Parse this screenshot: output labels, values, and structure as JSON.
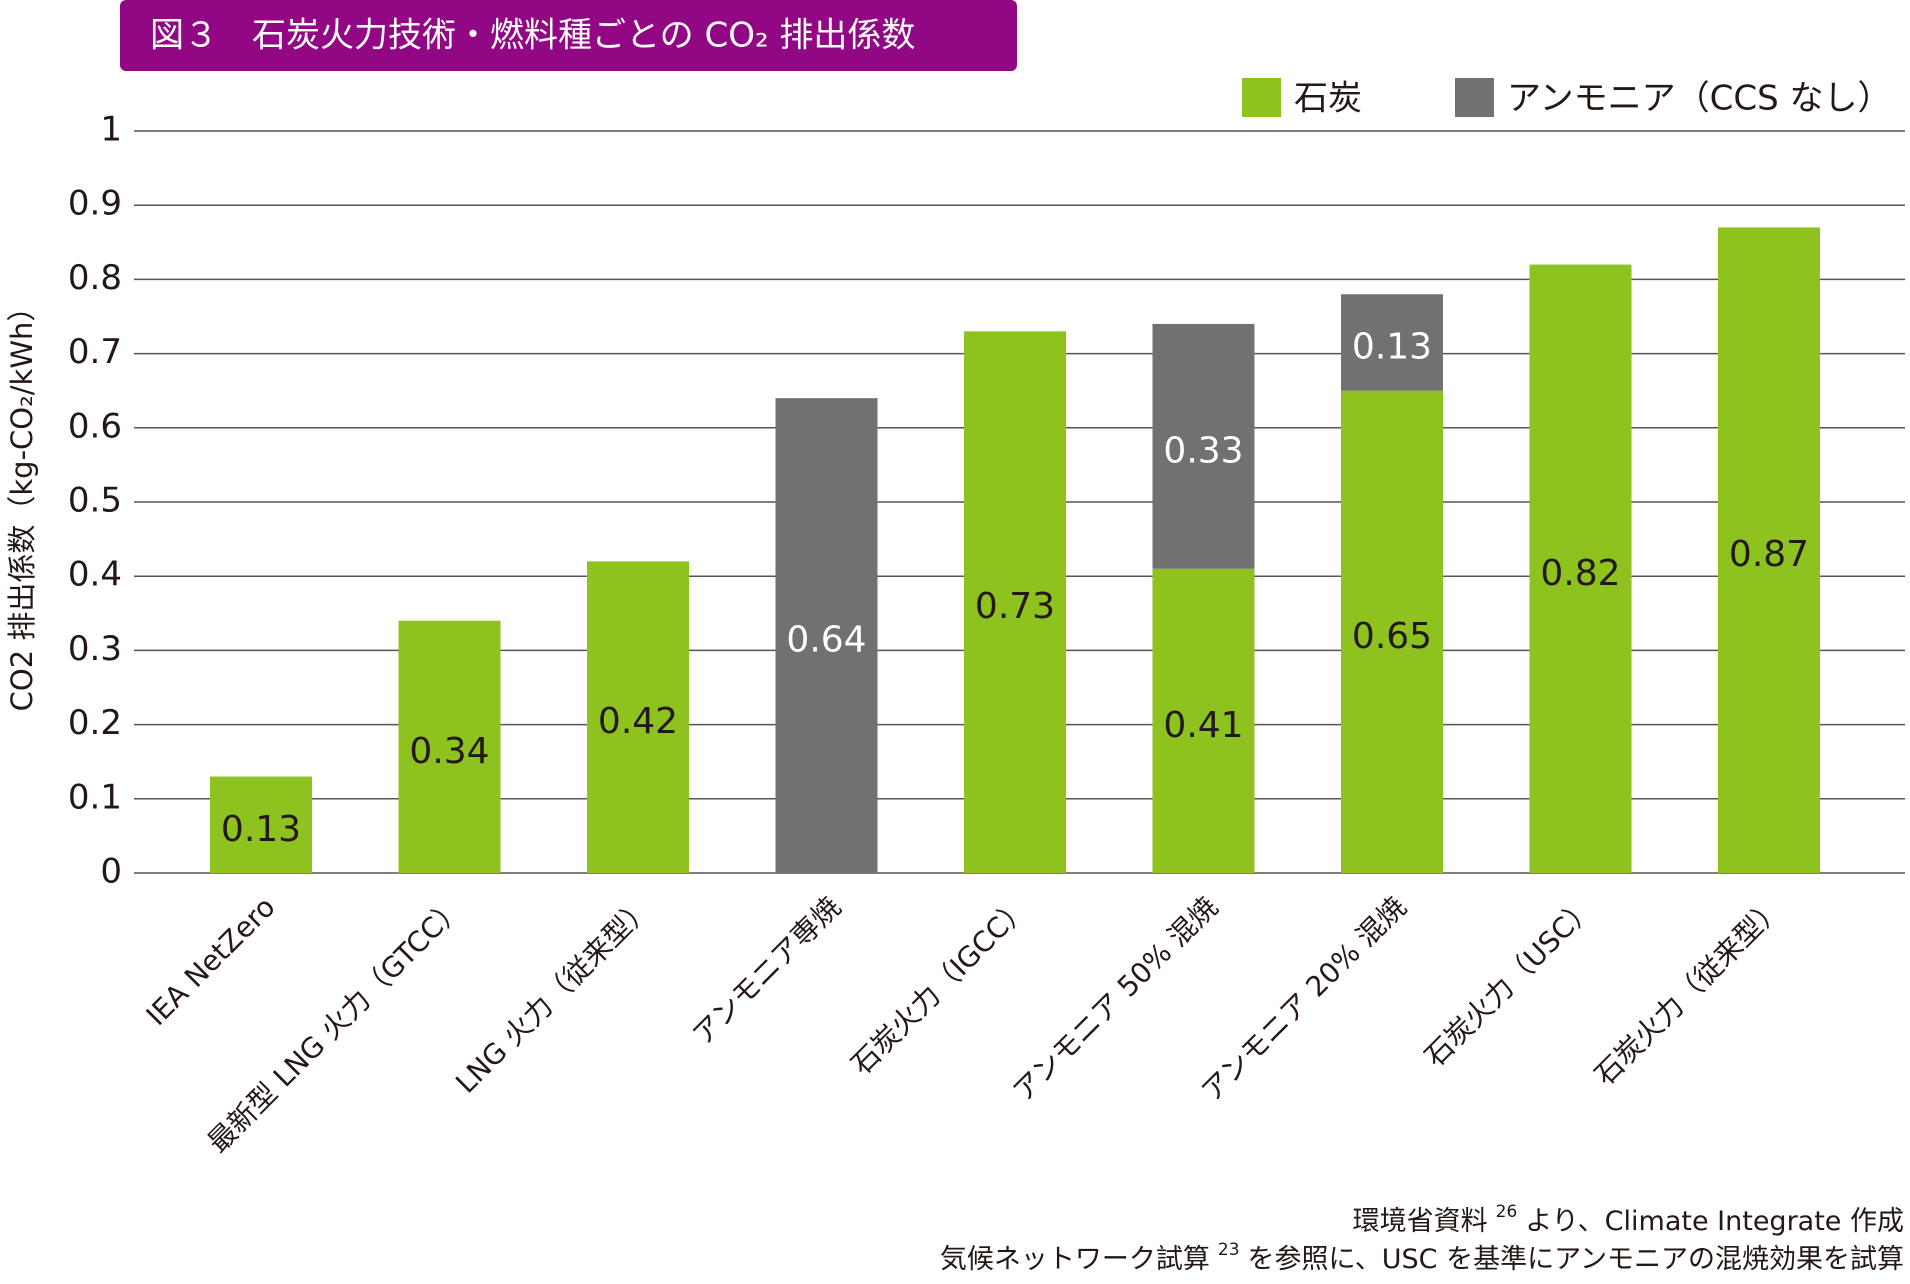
{
  "chart_data": {
    "type": "bar",
    "stacked": true,
    "title": "図３　石炭火力技術・燃料種ごとの CO₂ 排出係数",
    "y_label": "CO2 排出係数（kg-CO₂/kWh）",
    "categories": [
      "IEA NetZero",
      "最新型 LNG 火力（GTCC）",
      "LNG 火力（従来型）",
      "アンモニア専焼",
      "石炭火力（IGCC）",
      "アンモニア 50% 混焼",
      "アンモニア 20% 混焼",
      "石炭火力（USC）",
      "石炭火力（従来型）"
    ],
    "series": [
      {
        "name": "石炭",
        "color": "#8dc21f",
        "label_color": "#231815",
        "values": [
          0.13,
          0.34,
          0.42,
          null,
          0.73,
          0.41,
          0.65,
          0.82,
          0.87
        ]
      },
      {
        "name": "アンモニア（CCS なし）",
        "color": "#727171",
        "label_color": "#ffffff",
        "values": [
          null,
          null,
          null,
          0.64,
          null,
          0.33,
          0.13,
          null,
          null
        ]
      }
    ],
    "ylim": [
      0,
      1
    ],
    "yticks": [
      0,
      0.1,
      0.2,
      0.3,
      0.4,
      0.5,
      0.6,
      0.7,
      0.8,
      0.9,
      1
    ],
    "grid": true,
    "legend": "top-right",
    "title_color": "#920783",
    "notes": [
      [
        "環境省資料",
        "26",
        "より、Climate Integrate 作成"
      ],
      [
        "気候ネットワーク試算",
        "23",
        "を参照に、USC を基準にアンモニアの混焼効果を試算"
      ]
    ]
  }
}
